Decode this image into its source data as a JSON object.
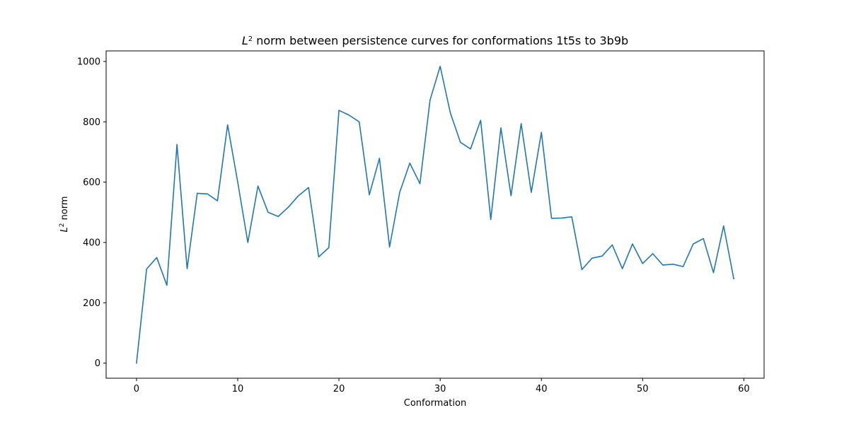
{
  "chart_data": {
    "type": "line",
    "title_prefix": "L",
    "title_sup": "2",
    "title_rest": " norm between persistence curves for conformations 1t5s to 3b9b",
    "xlabel": "Conformation",
    "ylabel_prefix": "L",
    "ylabel_sup": "2",
    "ylabel_rest": " norm",
    "xlim": [
      -3,
      62
    ],
    "ylim": [
      -50,
      1035
    ],
    "xticks": [
      0,
      10,
      20,
      30,
      40,
      50,
      60
    ],
    "yticks": [
      0,
      200,
      400,
      600,
      800,
      1000
    ],
    "grid": false,
    "line_color": "#1f77b4",
    "series": [
      {
        "x": [
          0,
          1,
          2,
          3,
          4,
          5,
          6,
          7,
          8,
          9,
          10,
          11,
          12,
          13,
          14,
          15,
          16,
          17,
          18,
          19,
          20,
          21,
          22,
          23,
          24,
          25,
          26,
          27,
          28,
          29,
          30,
          31,
          32,
          33,
          34,
          35,
          36,
          37,
          38,
          39,
          40,
          41,
          42,
          43,
          44,
          45,
          46,
          47,
          48,
          49,
          50,
          51,
          52,
          53,
          54,
          55,
          56,
          57,
          58,
          59
        ],
        "values": [
          0,
          312,
          350,
          258,
          725,
          313,
          563,
          561,
          538,
          790,
          600,
          400,
          587,
          500,
          486,
          517,
          555,
          582,
          352,
          383,
          838,
          822,
          800,
          558,
          679,
          385,
          566,
          663,
          595,
          872,
          984,
          830,
          732,
          710,
          805,
          476,
          780,
          555,
          794,
          566,
          765,
          480,
          481,
          485,
          310,
          348,
          355,
          392,
          313,
          395,
          330,
          363,
          325,
          328,
          320,
          395,
          413,
          300,
          455,
          280
        ]
      }
    ]
  }
}
